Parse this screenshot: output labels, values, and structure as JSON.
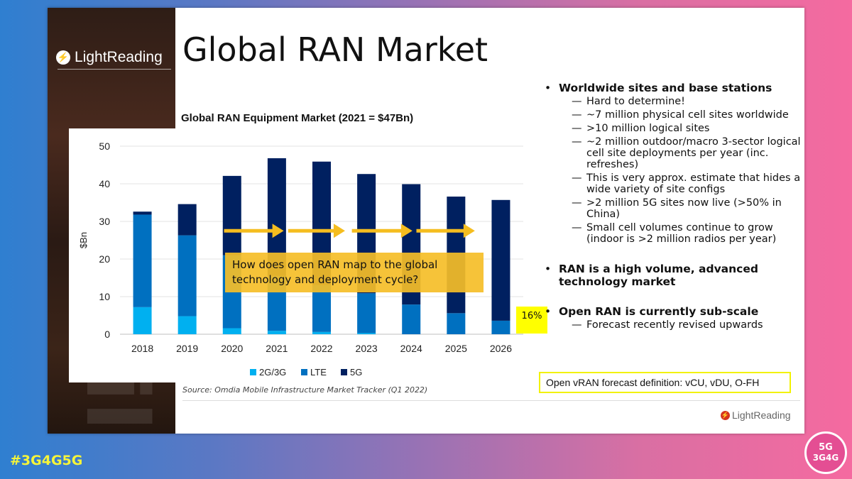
{
  "slide": {
    "title": "Global RAN Market",
    "brand_logo": "LightReading",
    "footer_logo": "LightReading",
    "source": "Source: Omdia Mobile Infrastructure Market Tracker (Q1 2022)"
  },
  "overlay": {
    "question": "How does open RAN map to the global technology and deployment cycle?",
    "pct_label": "16%",
    "definition": "Open vRAN forecast definition: vCU, vDU, O-FH"
  },
  "bullets": [
    {
      "text": "Worldwide sites and base stations",
      "sub": [
        "Hard to determine!",
        "~7 million physical cell sites worldwide",
        ">10 million logical sites",
        "~2 million outdoor/macro 3-sector logical cell site deployments per year (inc. refreshes)",
        "This is very approx. estimate that hides a wide variety of site configs",
        ">2 million 5G sites now live (>50% in China)",
        "Small cell volumes continue to grow (indoor is >2 million radios per year)"
      ]
    },
    {
      "text": "RAN is a high volume, advanced technology market",
      "sub": []
    },
    {
      "text": "Open RAN is currently sub-scale",
      "sub": [
        "Forecast recently revised upwards"
      ]
    }
  ],
  "outer": {
    "hashtag": "#3G4G5G",
    "badge_top": "5G",
    "badge_bottom": "3G4G"
  },
  "chart_data": {
    "type": "bar",
    "stacked": true,
    "title": "Global RAN Equipment Market (2021 = $47Bn)",
    "xlabel": "",
    "ylabel": "$Bn",
    "ylim": [
      0,
      50
    ],
    "yticks": [
      0,
      10,
      20,
      30,
      40,
      50
    ],
    "grid": true,
    "legend_position": "bottom",
    "categories": [
      "2018",
      "2019",
      "2020",
      "2021",
      "2022",
      "2023",
      "2024",
      "2025",
      "2026"
    ],
    "series": [
      {
        "name": "2G/3G",
        "color": "#00b0f0",
        "values": [
          7.2,
          4.8,
          1.6,
          0.9,
          0.6,
          0.3,
          0.0,
          0.0,
          0.0
        ]
      },
      {
        "name": "LTE",
        "color": "#0070c0",
        "values": [
          24.6,
          21.5,
          19.4,
          14.6,
          12.5,
          10.6,
          7.9,
          5.6,
          3.6
        ]
      },
      {
        "name": "5G",
        "color": "#002060",
        "values": [
          0.8,
          8.3,
          21.1,
          31.3,
          32.8,
          31.7,
          32.0,
          31.0,
          32.1
        ]
      }
    ]
  }
}
